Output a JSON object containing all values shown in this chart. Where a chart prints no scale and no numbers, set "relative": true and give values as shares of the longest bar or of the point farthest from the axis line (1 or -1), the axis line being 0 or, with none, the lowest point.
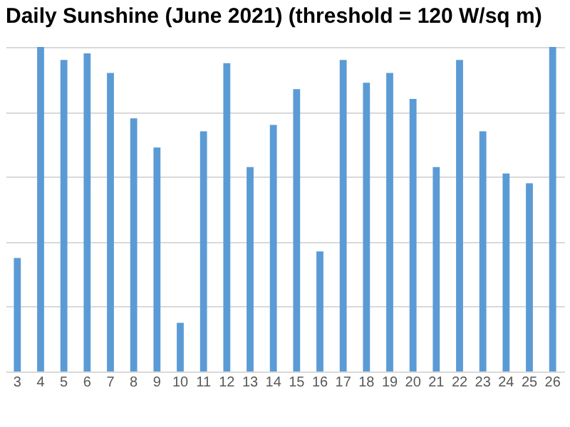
{
  "chart_data": {
    "type": "bar",
    "title": "Daily Sunshine (June 2021) (threshold = 120 W/sq m)",
    "relative": true,
    "grid": "y",
    "legend": false,
    "categories": [
      "3",
      "4",
      "5",
      "6",
      "7",
      "8",
      "9",
      "10",
      "11",
      "12",
      "13",
      "14",
      "15",
      "16",
      "17",
      "18",
      "19",
      "20",
      "21",
      "22",
      "23",
      "24",
      "25",
      "26"
    ],
    "series": [
      {
        "color": "#5b9bd5",
        "values": [
          0.35,
          1,
          0.96,
          0.98,
          0.92,
          0.78,
          0.69,
          0.15,
          0.74,
          0.95,
          0.63,
          0.76,
          0.87,
          0.37,
          0.96,
          0.89,
          0.92,
          0.84,
          0.63,
          0.96,
          0.74,
          0.61,
          0.58,
          1
        ]
      }
    ]
  }
}
